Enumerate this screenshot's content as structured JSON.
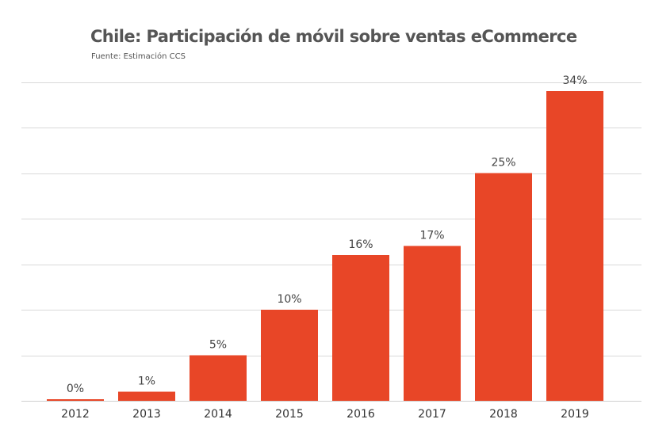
{
  "chart_data": {
    "type": "bar",
    "title": "Chile: Participación de móvil sobre ventas eCommerce",
    "subtitle": "Fuente: Estimación CCS",
    "categories": [
      "2012",
      "2013",
      "2014",
      "2015",
      "2016",
      "2017",
      "2018",
      "2019"
    ],
    "values": [
      0,
      1,
      5,
      10,
      16,
      17,
      25,
      34
    ],
    "data_labels": [
      "0%",
      "1%",
      "5%",
      "10%",
      "16%",
      "17%",
      "25%",
      "34%"
    ],
    "xlabel": "",
    "ylabel": "",
    "ylim": [
      0,
      35
    ],
    "grid": true,
    "legend": "none",
    "bar_color": "#e84627",
    "grid_color": "#d9d9d9"
  }
}
